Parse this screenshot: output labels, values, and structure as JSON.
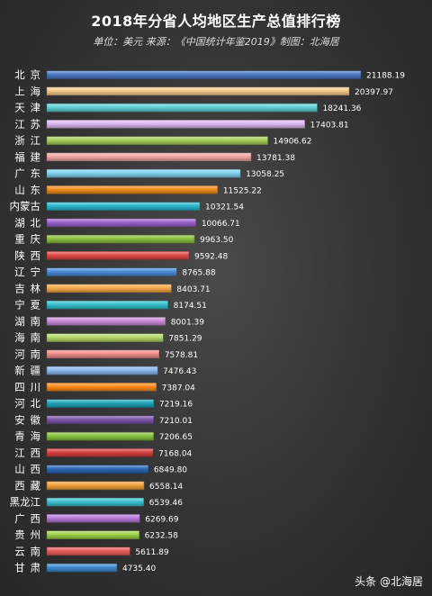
{
  "chart_data": {
    "type": "bar",
    "orientation": "horizontal",
    "title": "2018年分省人均地区生产总值排行榜",
    "subtitle": "单位：美元  来源：《中国统计年鉴2019》制图：北海居",
    "categories": [
      "北京",
      "上海",
      "天津",
      "江苏",
      "浙江",
      "福建",
      "广东",
      "山东",
      "内蒙古",
      "湖北",
      "重庆",
      "陕西",
      "辽宁",
      "吉林",
      "宁夏",
      "湖南",
      "海南",
      "河南",
      "新疆",
      "四川",
      "河北",
      "安徽",
      "青海",
      "江西",
      "山西",
      "西藏",
      "黑龙江",
      "广西",
      "贵州",
      "云南",
      "甘肃"
    ],
    "values": [
      21188.19,
      20397.97,
      18241.36,
      17403.81,
      14906.62,
      13781.38,
      13058.25,
      11525.22,
      10321.54,
      10066.71,
      9963.5,
      9592.48,
      8765.88,
      8403.71,
      8174.51,
      8001.39,
      7851.29,
      7578.81,
      7476.43,
      7387.04,
      7219.16,
      7210.01,
      7206.65,
      7168.04,
      6849.8,
      6558.14,
      6539.46,
      6269.69,
      6232.58,
      5611.89,
      4735.4
    ],
    "value_labels": [
      "21188.19",
      "20397.97",
      "18241.36",
      "17403.81",
      "14906.62",
      "13781.38",
      "13058.25",
      "11525.22",
      "10321.54",
      "10066.71",
      "9963.50",
      "9592.48",
      "8765.88",
      "8403.71",
      "8174.51",
      "8001.39",
      "7851.29",
      "7578.81",
      "7476.43",
      "7387.04",
      "7219.16",
      "7210.01",
      "7206.65",
      "7168.04",
      "6849.80",
      "6558.14",
      "6539.46",
      "6269.69",
      "6232.58",
      "5611.89",
      "4735.40"
    ],
    "bar_colors": [
      "#4a78c2",
      "#f6c98a",
      "#5fd0d6",
      "#dcb8ef",
      "#a8cf5b",
      "#f2a6a6",
      "#7fd2f2",
      "#f08a1c",
      "#2bb6cf",
      "#9a62cc",
      "#8cbf3f",
      "#e04848",
      "#4a8ad8",
      "#f5a94a",
      "#35c1cf",
      "#c88ed8",
      "#b5d86b",
      "#f08c8c",
      "#8ab8ec",
      "#ff8a1c",
      "#20a4b8",
      "#7b55a6",
      "#86c23e",
      "#d63e3e",
      "#2c67b6",
      "#f2a03a",
      "#3ec1d0",
      "#b67ad8",
      "#9fd24a",
      "#e65a5a",
      "#3d8ad2"
    ],
    "grid": false,
    "legend": "none"
  },
  "watermark": "头条 @北海居"
}
